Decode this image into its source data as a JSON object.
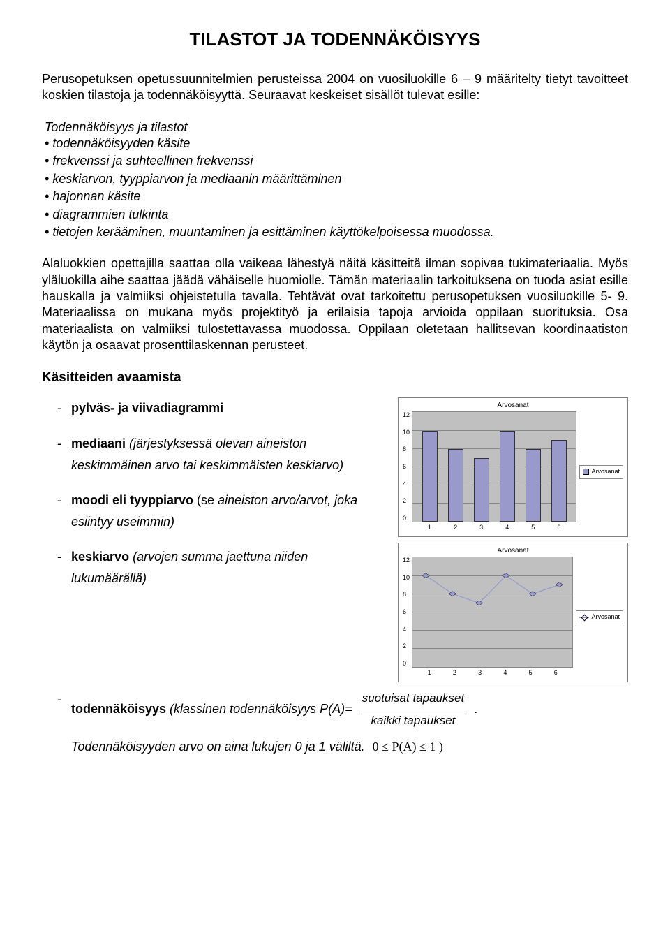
{
  "title": "TILASTOT JA TODENNÄKÖISYYS",
  "intro": "Perusopetuksen opetussuunnitelmien perusteissa 2004 on vuosiluokille 6 – 9 määritelty tietyt tavoitteet koskien tilastoja ja todennäköisyyttä. Seuraavat keskeiset sisällöt tulevat esille:",
  "list_header": "Todennäköisyys ja tilastot",
  "bullets": [
    "todennäköisyyden käsite",
    "frekvenssi ja suhteellinen frekvenssi",
    "keskiarvon, tyyppiarvon ja mediaanin määrittäminen",
    "hajonnan käsite",
    "diagrammien tulkinta",
    "tietojen kerääminen, muuntaminen ja esittäminen käyttökelpoisessa muodossa."
  ],
  "body": "Alaluokkien opettajilla saattaa olla vaikeaa lähestyä näitä käsitteitä ilman sopivaa tukimateriaalia. Myös yläluokilla aihe saattaa jäädä vähäiselle huomiolle. Tämän materiaalin tarkoituksena on tuoda asiat esille hauskalla ja valmiiksi ohjeistetulla tavalla. Tehtävät ovat tarkoitettu perusopetuksen vuosiluokille 5- 9. Materiaalissa on mukana myös projektityö ja erilaisia tapoja arvioida oppilaan suorituksia. Osa materiaalista on valmiiksi tulostettavassa muodossa. Oppilaan oletetaan hallitsevan koordinaatiston käytön ja osaavat prosenttilaskennan perusteet.",
  "subhead": "Käsitteiden avaamista",
  "defs": {
    "d1_b": "pylväs- ja viivadiagrammi",
    "d2_b": "mediaani",
    "d2_i": " (järjestyksessä olevan aineiston keskimmäinen arvo tai keskimmäisten keskiarvo)",
    "d3_b": "moodi eli tyyppiarvo",
    "d3_p": " (se ",
    "d3_i": "aineiston arvo/arvot, joka esiintyy useimmin)",
    "d4_b": "keskiarvo",
    "d4_i": " (arvojen summa jaettuna niiden lukumäärällä)",
    "d5_b": "todennäköisyys",
    "d5_i1": " (klassinen todennäköisyys P(A)= ",
    "frac_num": "suotuisat tapaukset",
    "frac_den": "kaikki   tapaukset",
    "d5_end": " .",
    "final": "Todennäköisyyden arvo on aina lukujen 0 ja 1 väliltä.",
    "range": "0 ≤ P(A) ≤ 1 )"
  },
  "chart": {
    "title": "Arvosanat",
    "legend": "Arvosanat",
    "categories": [
      "1",
      "2",
      "3",
      "4",
      "5",
      "6"
    ],
    "values": [
      10,
      8,
      7,
      10,
      8,
      9
    ],
    "yticks": [
      "0",
      "2",
      "4",
      "6",
      "8",
      "10",
      "12"
    ],
    "ymax": 12,
    "bar_color": "#9999cc",
    "line_color": "#9999cc",
    "marker_fill": "#9999cc",
    "plot_bg": "#c0c0c0",
    "grid_color": "#888888"
  }
}
